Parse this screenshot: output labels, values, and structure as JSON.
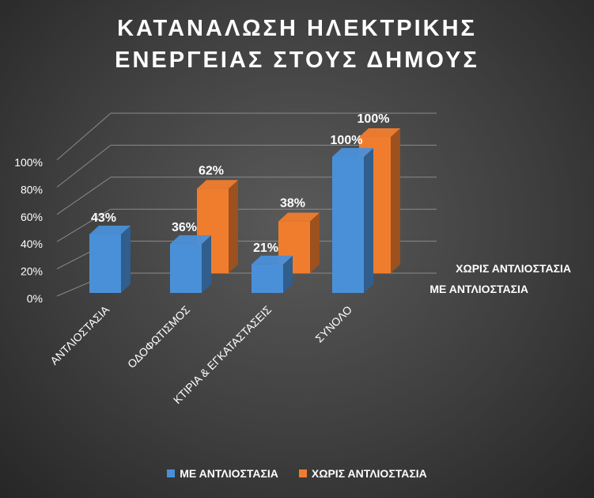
{
  "chart_data": {
    "type": "bar",
    "title_lines": [
      "ΚΑΤΑΝΑΛΩΣΗ ΗΛΕΚΤΡΙΚΗΣ",
      "ΕΝΕΡΓΕΙΑΣ ΣΤΟΥΣ ΔΗΜΟΥΣ"
    ],
    "categories": [
      "ΑΝΤΛΙΟΣΤΑΣΙΑ",
      "ΟΔΟΦΩΤΙΣΜΟΣ",
      "ΚΤΙΡΙΑ & ΕΓΚΑΤΑΣΤΑΣΕΙΣ",
      "ΣΥΝΟΛΟ"
    ],
    "series": [
      {
        "name": "ΜΕ ΑΝΤΛΙΟΣΤΑΣΙΑ",
        "values": [
          43,
          36,
          21,
          100
        ],
        "labels": [
          "43%",
          "36%",
          "21%",
          "100%"
        ],
        "color": "#4a90d9"
      },
      {
        "name": "ΧΩΡΙΣ ΑΝΤΛΙΟΣΤΑΣΙΑ",
        "values": [
          null,
          62,
          38,
          100
        ],
        "labels": [
          "",
          "62%",
          "38%",
          "100%"
        ],
        "color": "#f07d2e"
      }
    ],
    "y_ticks": [
      "0%",
      "20%",
      "40%",
      "60%",
      "80%",
      "100%"
    ],
    "ylim": [
      0,
      100
    ],
    "legend_position": "bottom",
    "grid": true
  }
}
